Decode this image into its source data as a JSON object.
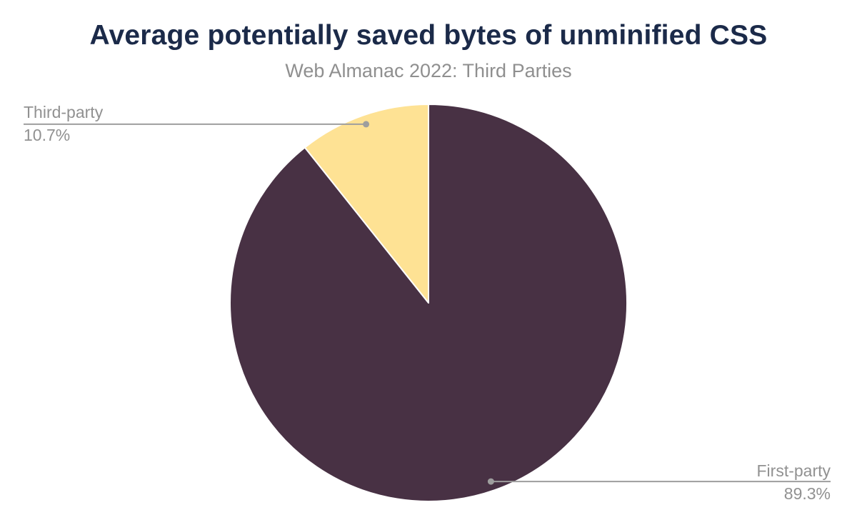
{
  "header": {
    "title": "Average potentially saved bytes of unminified CSS",
    "subtitle": "Web Almanac 2022: Third Parties"
  },
  "chart_data": {
    "type": "pie",
    "title": "Average potentially saved bytes of unminified CSS",
    "subtitle": "Web Almanac 2022: Third Parties",
    "unit": "%",
    "start_angle": "top",
    "direction": "clockwise",
    "legend_position": "none",
    "labeling": "leader-lines",
    "slices": [
      {
        "label": "First-party",
        "value": 89.3,
        "display_value": "89.3%",
        "color": "#483144"
      },
      {
        "label": "Third-party",
        "value": 10.7,
        "display_value": "10.7%",
        "color": "#FEE294"
      }
    ]
  },
  "style": {
    "background": "#ffffff",
    "title_color": "#1b2a49",
    "subtitle_color": "#8f8f8f",
    "label_color": "#919191",
    "leader_line_color": "#9e9e9e",
    "slice_border_color": "#ffffff"
  }
}
